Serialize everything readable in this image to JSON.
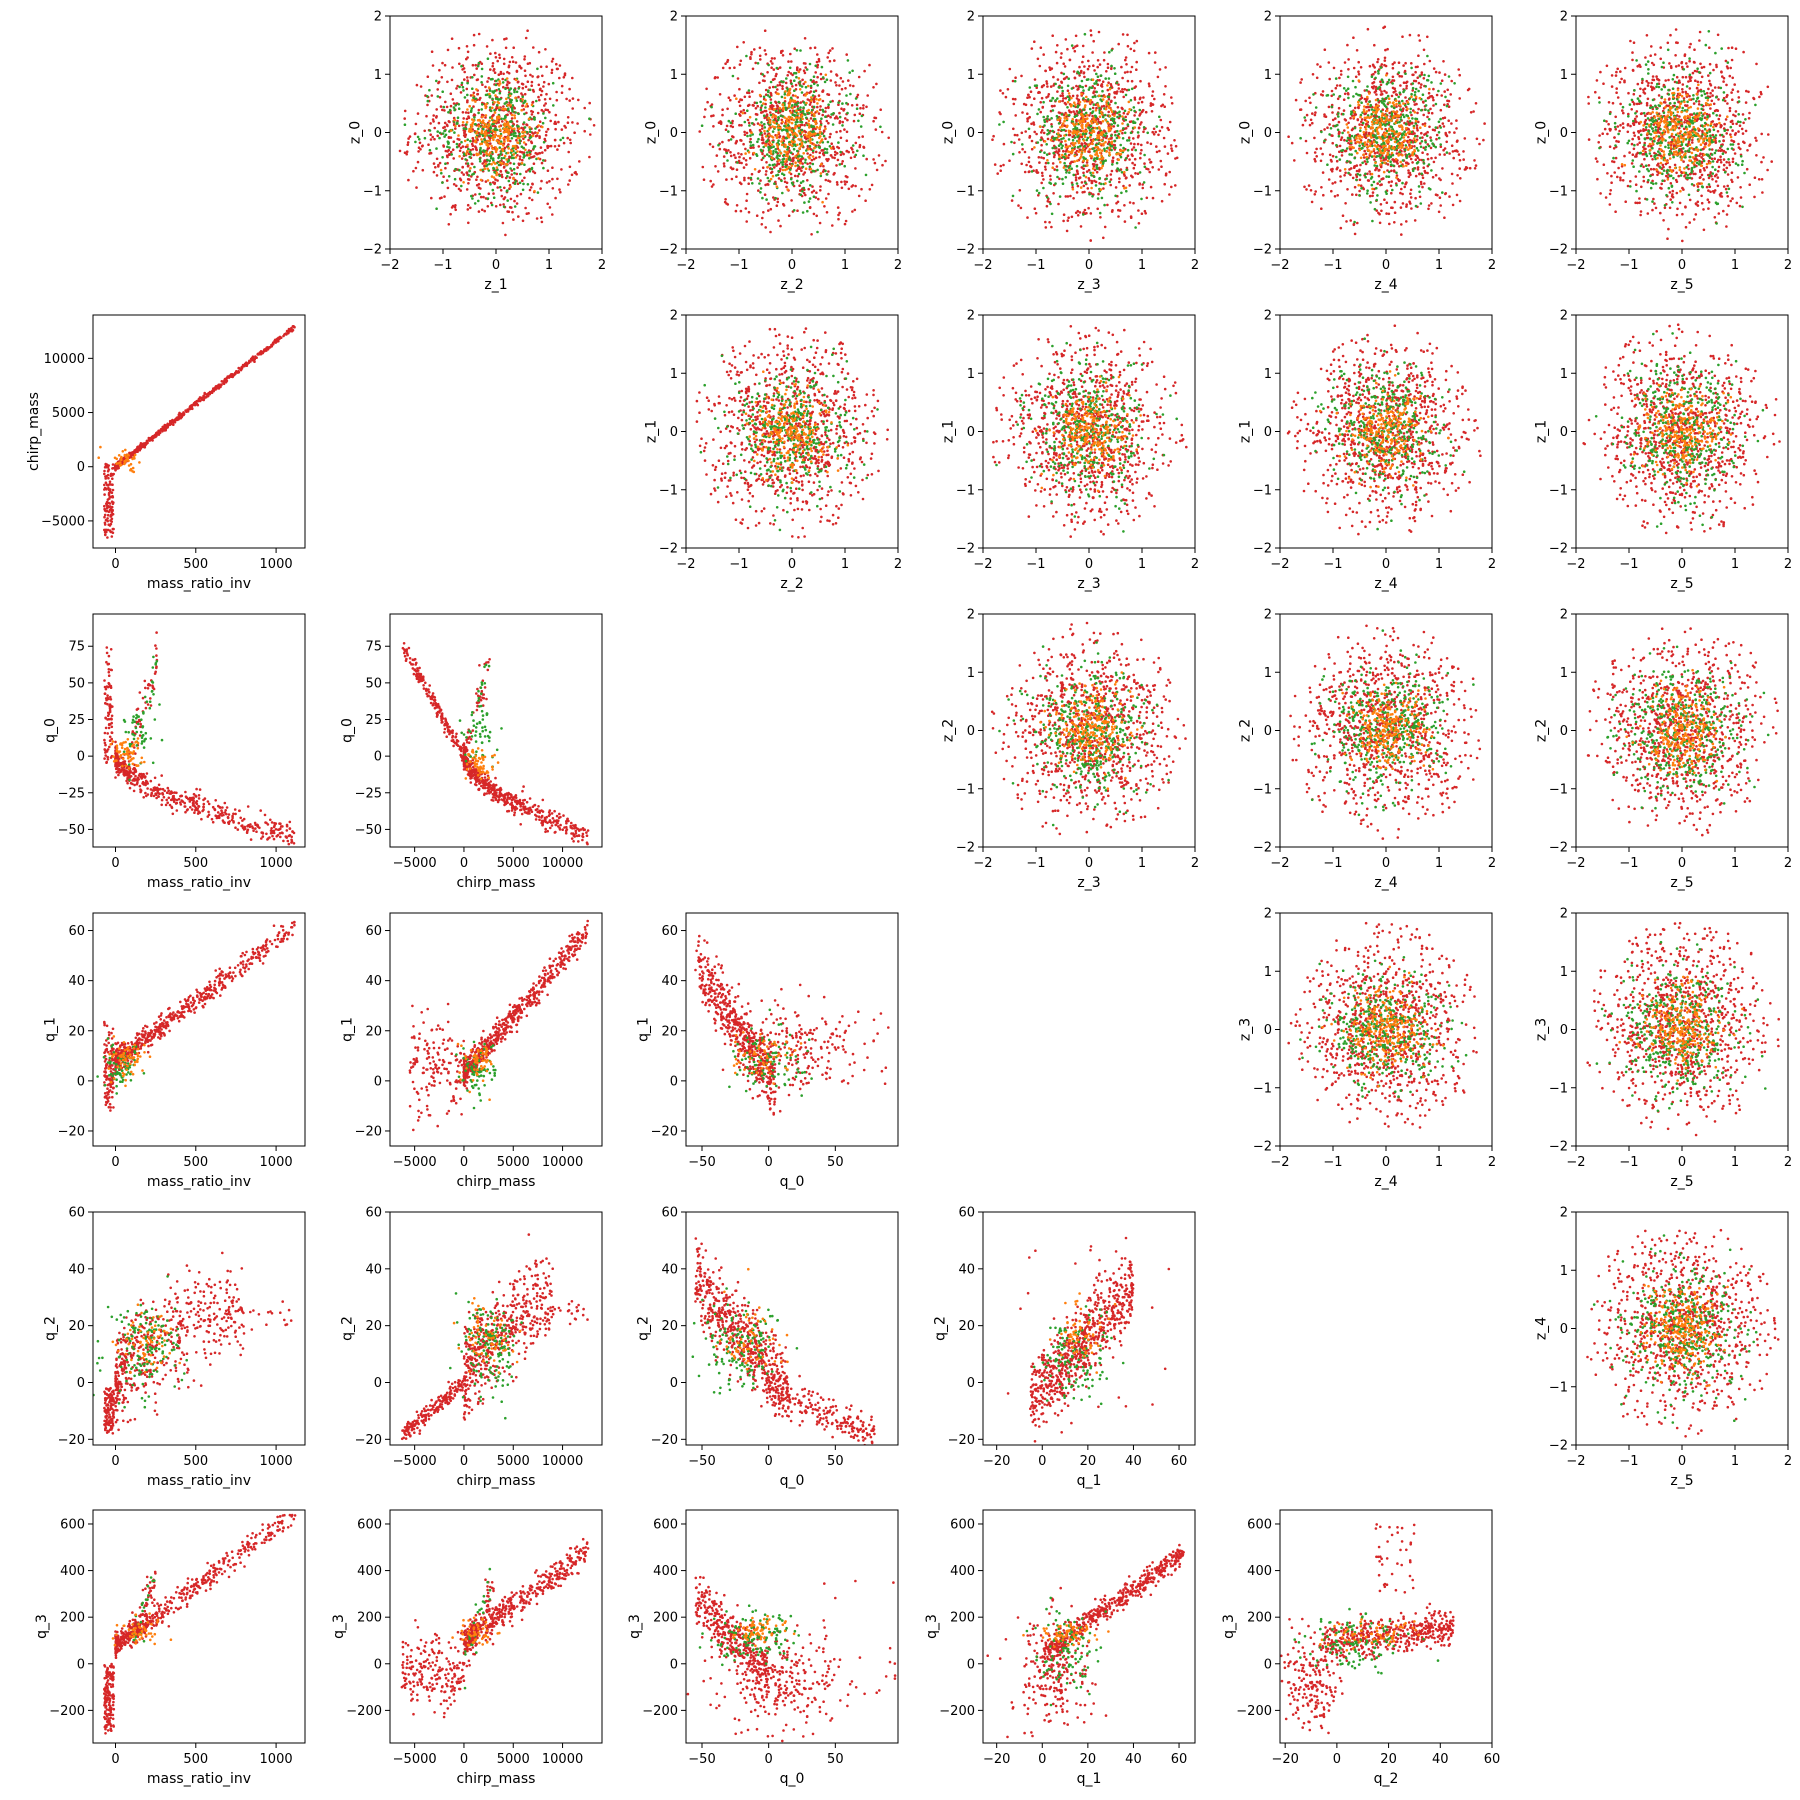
{
  "figure": {
    "background": "#ffffff"
  },
  "colors": {
    "red": "#d62728",
    "green": "#2ca02c",
    "orange": "#ff7f0e"
  },
  "chart_data": [
    {
      "type": "scatter",
      "row": 0,
      "col": 1,
      "xlabel": "z_1",
      "ylabel": "z_0",
      "xlim": [
        -2,
        2
      ],
      "ylim": [
        -2,
        2
      ],
      "xticks": [
        "−2",
        "−1",
        "0",
        "1",
        "2"
      ],
      "yticks": [
        "−2",
        "−1",
        "0",
        "1",
        "2"
      ],
      "pattern": "gaussian"
    },
    {
      "type": "scatter",
      "row": 0,
      "col": 2,
      "xlabel": "z_2",
      "ylabel": "z_0",
      "xlim": [
        -2,
        2
      ],
      "ylim": [
        -2,
        2
      ],
      "xticks": [
        "−2",
        "−1",
        "0",
        "1",
        "2"
      ],
      "yticks": [
        "−2",
        "−1",
        "0",
        "1",
        "2"
      ],
      "pattern": "gaussian"
    },
    {
      "type": "scatter",
      "row": 0,
      "col": 3,
      "xlabel": "z_3",
      "ylabel": "z_0",
      "xlim": [
        -2,
        2
      ],
      "ylim": [
        -2,
        2
      ],
      "xticks": [
        "−2",
        "−1",
        "0",
        "1",
        "2"
      ],
      "yticks": [
        "−2",
        "−1",
        "0",
        "1",
        "2"
      ],
      "pattern": "gaussian"
    },
    {
      "type": "scatter",
      "row": 0,
      "col": 4,
      "xlabel": "z_4",
      "ylabel": "z_0",
      "xlim": [
        -2,
        2
      ],
      "ylim": [
        -2,
        2
      ],
      "xticks": [
        "−2",
        "−1",
        "0",
        "1",
        "2"
      ],
      "yticks": [
        "−2",
        "−1",
        "0",
        "1",
        "2"
      ],
      "pattern": "gaussian"
    },
    {
      "type": "scatter",
      "row": 0,
      "col": 5,
      "xlabel": "z_5",
      "ylabel": "z_0",
      "xlim": [
        -2,
        2
      ],
      "ylim": [
        -2,
        2
      ],
      "xticks": [
        "−2",
        "−1",
        "0",
        "1",
        "2"
      ],
      "yticks": [
        "−2",
        "−1",
        "0",
        "1",
        "2"
      ],
      "pattern": "gaussian"
    },
    {
      "type": "scatter",
      "row": 1,
      "col": 0,
      "xlabel": "mass_ratio_inv",
      "ylabel": "chirp_mass",
      "xlim": [
        -140,
        1180
      ],
      "ylim": [
        -7500,
        14000
      ],
      "xticks": [
        "0",
        "500",
        "1000"
      ],
      "yticks": [
        "−5000",
        "0",
        "5000",
        "10000"
      ],
      "pattern": "mr-cm"
    },
    {
      "type": "scatter",
      "row": 1,
      "col": 2,
      "xlabel": "z_2",
      "ylabel": "z_1",
      "xlim": [
        -2,
        2
      ],
      "ylim": [
        -2,
        2
      ],
      "xticks": [
        "−2",
        "−1",
        "0",
        "1",
        "2"
      ],
      "yticks": [
        "−2",
        "−1",
        "0",
        "1",
        "2"
      ],
      "pattern": "gaussian"
    },
    {
      "type": "scatter",
      "row": 1,
      "col": 3,
      "xlabel": "z_3",
      "ylabel": "z_1",
      "xlim": [
        -2,
        2
      ],
      "ylim": [
        -2,
        2
      ],
      "xticks": [
        "−2",
        "−1",
        "0",
        "1",
        "2"
      ],
      "yticks": [
        "−2",
        "−1",
        "0",
        "1",
        "2"
      ],
      "pattern": "gaussian"
    },
    {
      "type": "scatter",
      "row": 1,
      "col": 4,
      "xlabel": "z_4",
      "ylabel": "z_1",
      "xlim": [
        -2,
        2
      ],
      "ylim": [
        -2,
        2
      ],
      "xticks": [
        "−2",
        "−1",
        "0",
        "1",
        "2"
      ],
      "yticks": [
        "−2",
        "−1",
        "0",
        "1",
        "2"
      ],
      "pattern": "gaussian"
    },
    {
      "type": "scatter",
      "row": 1,
      "col": 5,
      "xlabel": "z_5",
      "ylabel": "z_1",
      "xlim": [
        -2,
        2
      ],
      "ylim": [
        -2,
        2
      ],
      "xticks": [
        "−2",
        "−1",
        "0",
        "1",
        "2"
      ],
      "yticks": [
        "−2",
        "−1",
        "0",
        "1",
        "2"
      ],
      "pattern": "gaussian"
    },
    {
      "type": "scatter",
      "row": 2,
      "col": 0,
      "xlabel": "mass_ratio_inv",
      "ylabel": "q_0",
      "xlim": [
        -140,
        1180
      ],
      "ylim": [
        -62,
        97
      ],
      "xticks": [
        "0",
        "500",
        "1000"
      ],
      "yticks": [
        "−50",
        "−25",
        "0",
        "25",
        "50",
        "75"
      ],
      "pattern": "mr-q0"
    },
    {
      "type": "scatter",
      "row": 2,
      "col": 1,
      "xlabel": "chirp_mass",
      "ylabel": "q_0",
      "xlim": [
        -7500,
        14000
      ],
      "ylim": [
        -62,
        97
      ],
      "xticks": [
        "−5000",
        "0",
        "5000",
        "10000"
      ],
      "yticks": [
        "−50",
        "−25",
        "0",
        "25",
        "50",
        "75"
      ],
      "pattern": "cm-q0"
    },
    {
      "type": "scatter",
      "row": 2,
      "col": 3,
      "xlabel": "z_3",
      "ylabel": "z_2",
      "xlim": [
        -2,
        2
      ],
      "ylim": [
        -2,
        2
      ],
      "xticks": [
        "−2",
        "−1",
        "0",
        "1",
        "2"
      ],
      "yticks": [
        "−2",
        "−1",
        "0",
        "1",
        "2"
      ],
      "pattern": "gaussian"
    },
    {
      "type": "scatter",
      "row": 2,
      "col": 4,
      "xlabel": "z_4",
      "ylabel": "z_2",
      "xlim": [
        -2,
        2
      ],
      "ylim": [
        -2,
        2
      ],
      "xticks": [
        "−2",
        "−1",
        "0",
        "1",
        "2"
      ],
      "yticks": [
        "−2",
        "−1",
        "0",
        "1",
        "2"
      ],
      "pattern": "gaussian"
    },
    {
      "type": "scatter",
      "row": 2,
      "col": 5,
      "xlabel": "z_5",
      "ylabel": "z_2",
      "xlim": [
        -2,
        2
      ],
      "ylim": [
        -2,
        2
      ],
      "xticks": [
        "−2",
        "−1",
        "0",
        "1",
        "2"
      ],
      "yticks": [
        "−2",
        "−1",
        "0",
        "1",
        "2"
      ],
      "pattern": "gaussian"
    },
    {
      "type": "scatter",
      "row": 3,
      "col": 0,
      "xlabel": "mass_ratio_inv",
      "ylabel": "q_1",
      "xlim": [
        -140,
        1180
      ],
      "ylim": [
        -26,
        67
      ],
      "xticks": [
        "0",
        "500",
        "1000"
      ],
      "yticks": [
        "−20",
        "0",
        "20",
        "40",
        "60"
      ],
      "pattern": "mr-q1"
    },
    {
      "type": "scatter",
      "row": 3,
      "col": 1,
      "xlabel": "chirp_mass",
      "ylabel": "q_1",
      "xlim": [
        -7500,
        14000
      ],
      "ylim": [
        -26,
        67
      ],
      "xticks": [
        "−5000",
        "0",
        "5000",
        "10000"
      ],
      "yticks": [
        "−20",
        "0",
        "20",
        "40",
        "60"
      ],
      "pattern": "cm-q1"
    },
    {
      "type": "scatter",
      "row": 3,
      "col": 2,
      "xlabel": "q_0",
      "ylabel": "q_1",
      "xlim": [
        -62,
        97
      ],
      "ylim": [
        -26,
        67
      ],
      "xticks": [
        "−50",
        "0",
        "50"
      ],
      "yticks": [
        "−20",
        "0",
        "20",
        "40",
        "60"
      ],
      "pattern": "q0-q1"
    },
    {
      "type": "scatter",
      "row": 3,
      "col": 4,
      "xlabel": "z_4",
      "ylabel": "z_3",
      "xlim": [
        -2,
        2
      ],
      "ylim": [
        -2,
        2
      ],
      "xticks": [
        "−2",
        "−1",
        "0",
        "1",
        "2"
      ],
      "yticks": [
        "−2",
        "−1",
        "0",
        "1",
        "2"
      ],
      "pattern": "gaussian"
    },
    {
      "type": "scatter",
      "row": 3,
      "col": 5,
      "xlabel": "z_5",
      "ylabel": "z_3",
      "xlim": [
        -2,
        2
      ],
      "ylim": [
        -2,
        2
      ],
      "xticks": [
        "−2",
        "−1",
        "0",
        "1",
        "2"
      ],
      "yticks": [
        "−2",
        "−1",
        "0",
        "1",
        "2"
      ],
      "pattern": "gaussian"
    },
    {
      "type": "scatter",
      "row": 4,
      "col": 0,
      "xlabel": "mass_ratio_inv",
      "ylabel": "q_2",
      "xlim": [
        -140,
        1180
      ],
      "ylim": [
        -22,
        60
      ],
      "xticks": [
        "0",
        "500",
        "1000"
      ],
      "yticks": [
        "−20",
        "0",
        "20",
        "40",
        "60"
      ],
      "pattern": "mr-q2"
    },
    {
      "type": "scatter",
      "row": 4,
      "col": 1,
      "xlabel": "chirp_mass",
      "ylabel": "q_2",
      "xlim": [
        -7500,
        14000
      ],
      "ylim": [
        -22,
        60
      ],
      "xticks": [
        "−5000",
        "0",
        "5000",
        "10000"
      ],
      "yticks": [
        "−20",
        "0",
        "20",
        "40",
        "60"
      ],
      "pattern": "cm-q2"
    },
    {
      "type": "scatter",
      "row": 4,
      "col": 2,
      "xlabel": "q_0",
      "ylabel": "q_2",
      "xlim": [
        -62,
        97
      ],
      "ylim": [
        -22,
        60
      ],
      "xticks": [
        "−50",
        "0",
        "50"
      ],
      "yticks": [
        "−20",
        "0",
        "20",
        "40",
        "60"
      ],
      "pattern": "q0-q2"
    },
    {
      "type": "scatter",
      "row": 4,
      "col": 3,
      "xlabel": "q_1",
      "ylabel": "q_2",
      "xlim": [
        -26,
        67
      ],
      "ylim": [
        -22,
        60
      ],
      "xticks": [
        "−20",
        "0",
        "20",
        "40",
        "60"
      ],
      "yticks": [
        "−20",
        "0",
        "20",
        "40",
        "60"
      ],
      "pattern": "q1-q2"
    },
    {
      "type": "scatter",
      "row": 4,
      "col": 5,
      "xlabel": "z_5",
      "ylabel": "z_4",
      "xlim": [
        -2,
        2
      ],
      "ylim": [
        -2,
        2
      ],
      "xticks": [
        "−2",
        "−1",
        "0",
        "1",
        "2"
      ],
      "yticks": [
        "−2",
        "−1",
        "0",
        "1",
        "2"
      ],
      "pattern": "gaussian"
    },
    {
      "type": "scatter",
      "row": 5,
      "col": 0,
      "xlabel": "mass_ratio_inv",
      "ylabel": "q_3",
      "xlim": [
        -140,
        1180
      ],
      "ylim": [
        -340,
        660
      ],
      "xticks": [
        "0",
        "500",
        "1000"
      ],
      "yticks": [
        "−200",
        "0",
        "200",
        "400",
        "600"
      ],
      "pattern": "mr-q3"
    },
    {
      "type": "scatter",
      "row": 5,
      "col": 1,
      "xlabel": "chirp_mass",
      "ylabel": "q_3",
      "xlim": [
        -7500,
        14000
      ],
      "ylim": [
        -340,
        660
      ],
      "xticks": [
        "−5000",
        "0",
        "5000",
        "10000"
      ],
      "yticks": [
        "−200",
        "0",
        "200",
        "400",
        "600"
      ],
      "pattern": "cm-q3"
    },
    {
      "type": "scatter",
      "row": 5,
      "col": 2,
      "xlabel": "q_0",
      "ylabel": "q_3",
      "xlim": [
        -62,
        97
      ],
      "ylim": [
        -340,
        660
      ],
      "xticks": [
        "−50",
        "0",
        "50"
      ],
      "yticks": [
        "−200",
        "0",
        "200",
        "400",
        "600"
      ],
      "pattern": "q0-q3"
    },
    {
      "type": "scatter",
      "row": 5,
      "col": 3,
      "xlabel": "q_1",
      "ylabel": "q_3",
      "xlim": [
        -26,
        67
      ],
      "ylim": [
        -340,
        660
      ],
      "xticks": [
        "−20",
        "0",
        "20",
        "40",
        "60"
      ],
      "yticks": [
        "−200",
        "0",
        "200",
        "400",
        "600"
      ],
      "pattern": "q1-q3"
    },
    {
      "type": "scatter",
      "row": 5,
      "col": 4,
      "xlabel": "q_2",
      "ylabel": "q_3",
      "xlim": [
        -22,
        60
      ],
      "ylim": [
        -340,
        660
      ],
      "xticks": [
        "−20",
        "0",
        "20",
        "40",
        "60"
      ],
      "yticks": [
        "−200",
        "0",
        "200",
        "400",
        "600"
      ],
      "pattern": "q2-q3"
    }
  ]
}
